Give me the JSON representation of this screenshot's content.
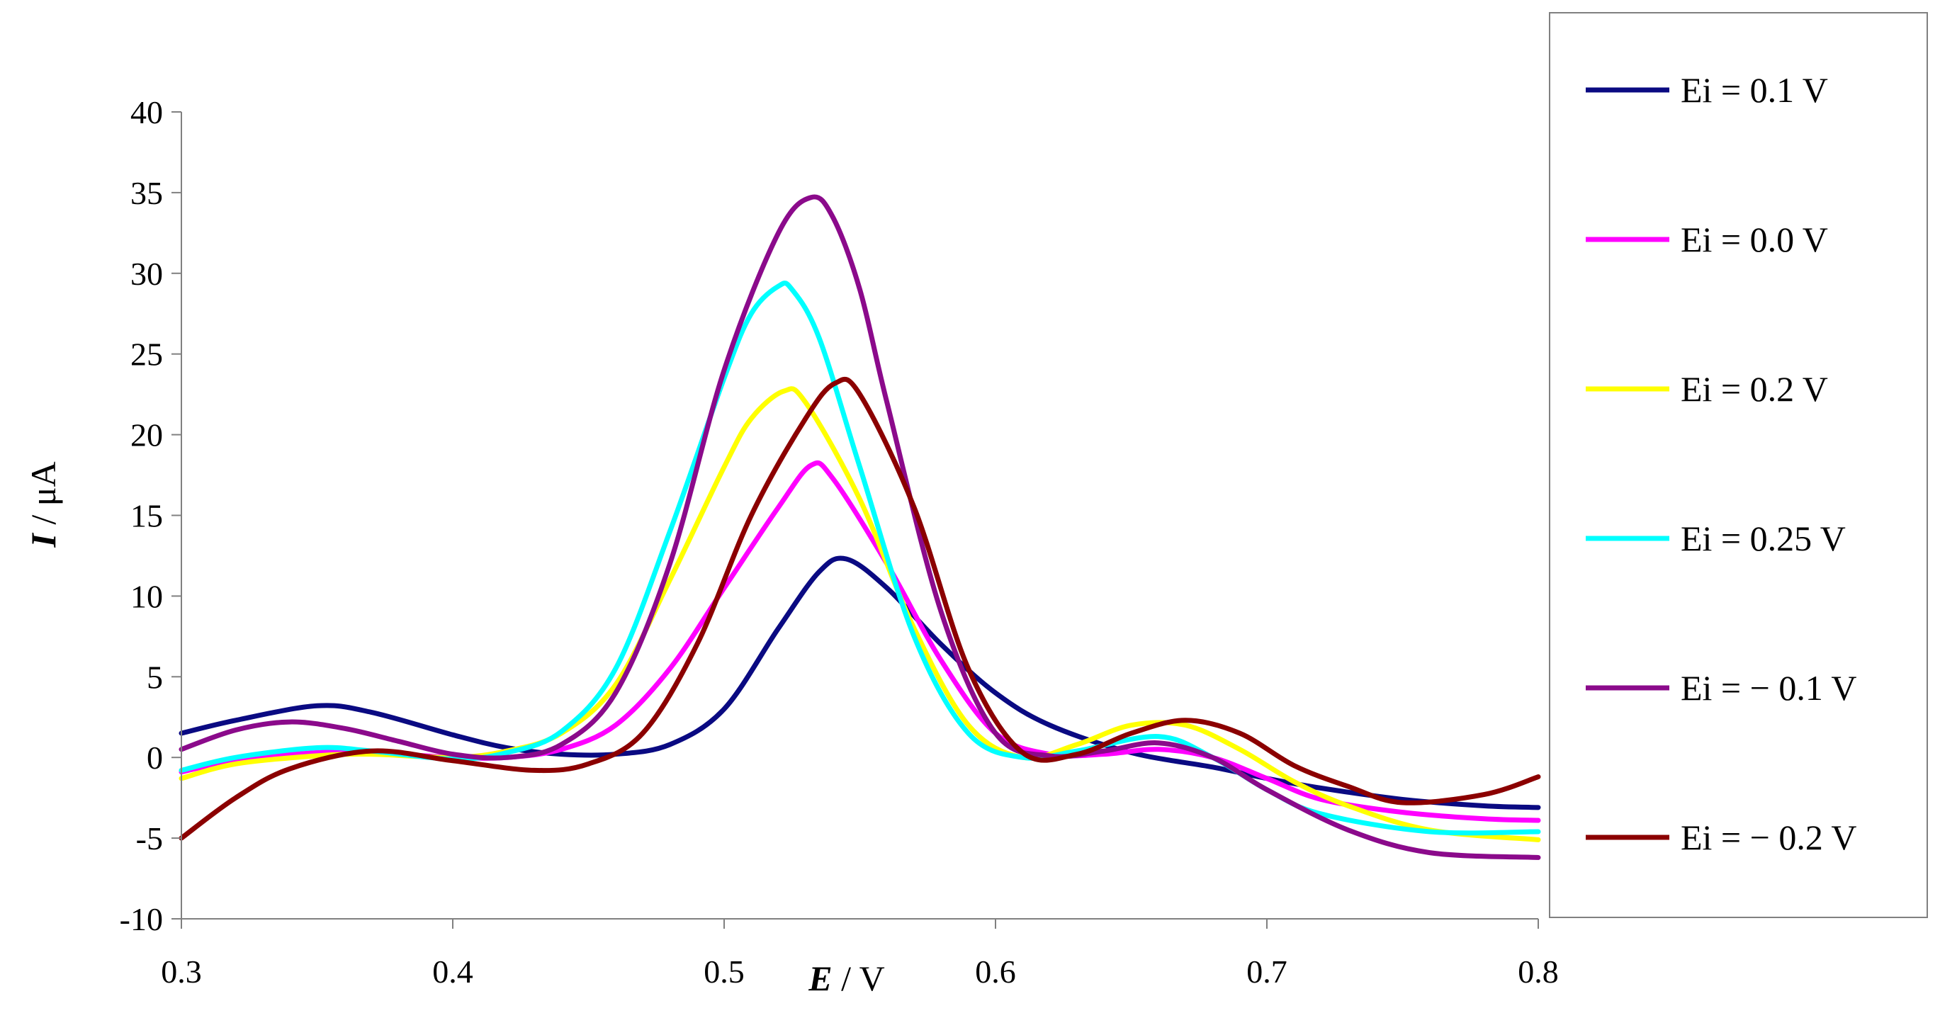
{
  "chart_data": {
    "type": "line",
    "x_axis": {
      "min": 0.3,
      "max": 0.8,
      "ticks": [
        0.3,
        0.4,
        0.5,
        0.6,
        0.7,
        0.8
      ],
      "tick_labels": [
        "0.3",
        "0.4",
        "0.5",
        "0.6",
        "0.7",
        "0.8"
      ],
      "label_symbol": "E",
      "label_unit": " / V"
    },
    "y_axis": {
      "min": -10,
      "max": 40,
      "ticks": [
        -10,
        -5,
        0,
        5,
        10,
        15,
        20,
        25,
        30,
        35,
        40
      ],
      "tick_labels": [
        "-10",
        "-5",
        "0",
        "5",
        "10",
        "15",
        "20",
        "25",
        "30",
        "35",
        "40"
      ],
      "label_symbol": "I",
      "label_unit": " / μA"
    },
    "grid": false,
    "legend_position": "right",
    "series": [
      {
        "name": "Ei = 0.1 V",
        "color": "#0a0a82",
        "x": [
          0.3,
          0.32,
          0.35,
          0.37,
          0.4,
          0.42,
          0.44,
          0.46,
          0.48,
          0.5,
          0.52,
          0.535,
          0.545,
          0.56,
          0.58,
          0.6,
          0.62,
          0.65,
          0.68,
          0.7,
          0.72,
          0.75,
          0.78,
          0.8
        ],
        "y": [
          1.5,
          2.3,
          3.2,
          2.8,
          1.4,
          0.6,
          0.2,
          0.2,
          0.8,
          3.0,
          8.0,
          11.5,
          12.3,
          10.5,
          7.0,
          4.0,
          2.0,
          0.3,
          -0.6,
          -1.3,
          -1.9,
          -2.6,
          -3.0,
          -3.1
        ]
      },
      {
        "name": "Ei = 0.0 V",
        "color": "#ff00ff",
        "x": [
          0.3,
          0.32,
          0.35,
          0.37,
          0.4,
          0.42,
          0.44,
          0.46,
          0.48,
          0.5,
          0.52,
          0.532,
          0.54,
          0.56,
          0.58,
          0.6,
          0.62,
          0.64,
          0.66,
          0.68,
          0.7,
          0.72,
          0.75,
          0.78,
          0.8
        ],
        "y": [
          -0.9,
          -0.2,
          0.3,
          0.3,
          0.0,
          0.0,
          0.5,
          2.0,
          5.5,
          10.5,
          15.5,
          18.1,
          17.3,
          12.0,
          6.0,
          1.5,
          0.2,
          0.2,
          0.5,
          0.0,
          -1.3,
          -2.6,
          -3.4,
          -3.8,
          -3.9
        ]
      },
      {
        "name": "Ei = 0.2 V",
        "color": "#ffff00",
        "x": [
          0.3,
          0.32,
          0.35,
          0.37,
          0.4,
          0.42,
          0.44,
          0.46,
          0.48,
          0.5,
          0.51,
          0.522,
          0.53,
          0.55,
          0.57,
          0.59,
          0.61,
          0.63,
          0.65,
          0.67,
          0.69,
          0.71,
          0.73,
          0.76,
          0.8
        ],
        "y": [
          -1.3,
          -0.4,
          0.1,
          0.2,
          0.0,
          0.4,
          1.5,
          4.5,
          11.0,
          18.0,
          21.0,
          22.7,
          22.0,
          16.0,
          8.0,
          2.0,
          0.0,
          0.8,
          2.0,
          2.0,
          0.5,
          -1.5,
          -3.0,
          -4.5,
          -5.1
        ]
      },
      {
        "name": "Ei = 0.25 V",
        "color": "#00ffff",
        "x": [
          0.3,
          0.32,
          0.35,
          0.37,
          0.4,
          0.42,
          0.44,
          0.46,
          0.48,
          0.5,
          0.51,
          0.52,
          0.525,
          0.535,
          0.55,
          0.57,
          0.59,
          0.61,
          0.63,
          0.66,
          0.68,
          0.7,
          0.72,
          0.76,
          0.8
        ],
        "y": [
          -0.8,
          0.0,
          0.6,
          0.4,
          -0.1,
          0.3,
          1.6,
          5.5,
          14.0,
          23.5,
          27.5,
          29.2,
          29.0,
          26.0,
          18.0,
          7.5,
          1.5,
          0.0,
          0.4,
          1.3,
          0.0,
          -2.0,
          -3.5,
          -4.6,
          -4.6
        ]
      },
      {
        "name": "Ei = − 0.1 V",
        "color": "#8b0a8b",
        "x": [
          0.3,
          0.32,
          0.34,
          0.36,
          0.38,
          0.4,
          0.42,
          0.44,
          0.46,
          0.48,
          0.5,
          0.52,
          0.532,
          0.54,
          0.55,
          0.56,
          0.58,
          0.6,
          0.62,
          0.64,
          0.66,
          0.68,
          0.7,
          0.73,
          0.76,
          0.8
        ],
        "y": [
          0.5,
          1.7,
          2.2,
          1.8,
          1.0,
          0.2,
          0.0,
          0.8,
          4.0,
          12.0,
          24.0,
          32.5,
          34.7,
          33.5,
          29.0,
          22.0,
          9.0,
          1.5,
          0.1,
          0.4,
          0.9,
          0.0,
          -2.0,
          -4.5,
          -5.9,
          -6.2
        ]
      },
      {
        "name": "Ei = − 0.2 V",
        "color": "#8b0000",
        "x": [
          0.3,
          0.32,
          0.34,
          0.37,
          0.4,
          0.43,
          0.45,
          0.47,
          0.49,
          0.51,
          0.53,
          0.541,
          0.55,
          0.57,
          0.59,
          0.61,
          0.63,
          0.65,
          0.67,
          0.69,
          0.71,
          0.73,
          0.75,
          0.78,
          0.8
        ],
        "y": [
          -5.0,
          -2.5,
          -0.7,
          0.4,
          -0.2,
          -0.8,
          -0.4,
          1.5,
          7.0,
          15.0,
          21.0,
          23.2,
          22.5,
          15.5,
          5.5,
          0.3,
          0.2,
          1.5,
          2.3,
          1.5,
          -0.5,
          -1.8,
          -2.8,
          -2.3,
          -1.2
        ]
      }
    ]
  }
}
